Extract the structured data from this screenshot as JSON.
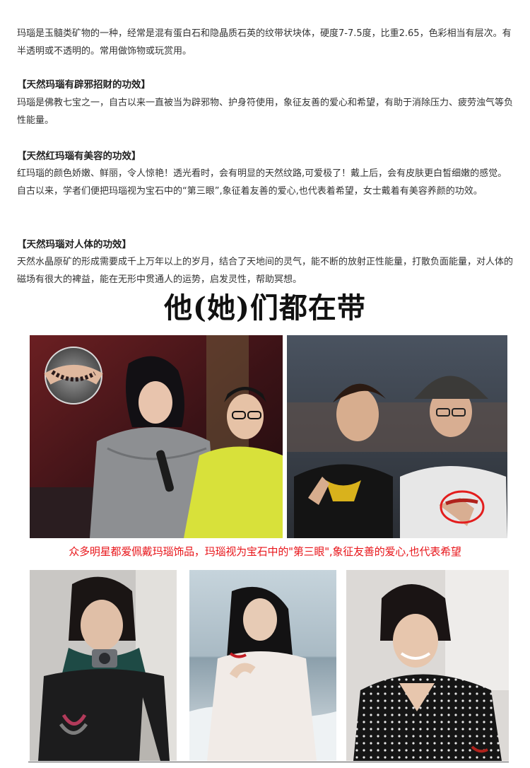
{
  "intro": "玛瑙是玉髓类矿物的一种，经常是混有蛋白石和隐晶质石英的纹带状块体，硬度7-7.5度，比重2.65，色彩相当有层次。有半透明或不透明的。常用做饰物或玩赏用。",
  "sections": [
    {
      "heading": "【天然玛瑙有辟邪招财的功效】",
      "body": "玛瑙是佛教七宝之一，自古以来一直被当为辟邪物、护身符使用，象征友善的爱心和希望，有助于消除压力、疲劳浊气等负性能量。"
    },
    {
      "heading": "【天然红玛瑙有美容的功效】",
      "body": "红玛瑙的颜色娇嫩、鲜丽，令人惊艳！透光看时，会有明显的天然纹路,可爱极了！戴上后，会有皮肤更白皙细嫩的感觉。自古以来，学者们便把玛瑙视为宝石中的“第三眼”,象征着友善的爱心,也代表着希望，女士戴着有美容养颜的功效。"
    },
    {
      "heading": "【天然玛瑙对人体的功效】",
      "body": "天然水晶原矿的形成需要成千上万年以上的岁月，结合了天地间的灵气，能不断的放射正性能量，打散负面能量，对人体的磁场有很大的裨益，能在无形中贯通人的运势，启发灵性，帮助冥想。"
    }
  ],
  "banner_title": "他(她)们都在带",
  "caption": "众多明星都爱佩戴玛瑙饰品，玛瑙视为宝石中的\"第三眼\",象征友善的爱心,也代表希望",
  "colors": {
    "caption": "#e8161b",
    "text": "#333333",
    "bracelet": "#b0221c"
  }
}
